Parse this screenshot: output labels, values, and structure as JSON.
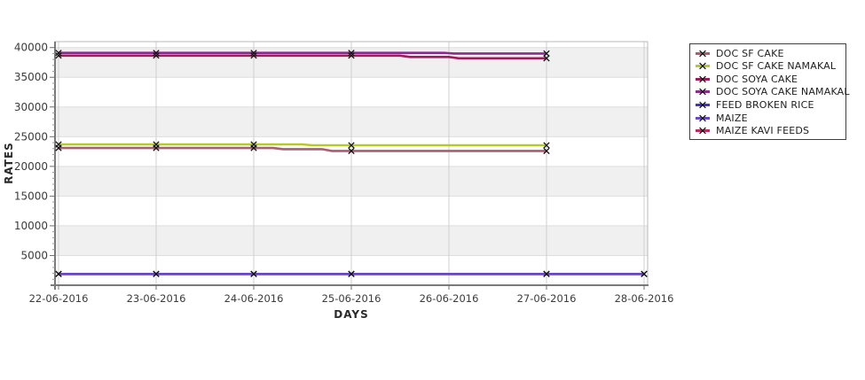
{
  "page": {
    "background": "#ffffff"
  },
  "chart_data": {
    "type": "line",
    "title": "",
    "xlabel": "DAYS",
    "ylabel": "RATES",
    "x_tick_labels": [
      "22-06-2016",
      "23-06-2016",
      "24-06-2016",
      "25-06-2016",
      "26-06-2016",
      "27-06-2016",
      "28-06-2016"
    ],
    "y_ticks": [
      5000,
      10000,
      15000,
      20000,
      25000,
      30000,
      35000,
      40000
    ],
    "y_minor_step": 1000,
    "ylim": [
      0,
      41000
    ],
    "xlim_days": [
      0,
      6
    ],
    "grid": true,
    "plot_band_colors": {
      "even": "#ffffff",
      "odd": "#f0f0f0"
    },
    "gridline_color": "#cfcfcf",
    "legend_position": "right",
    "legend_marker": "x-on-line",
    "series": [
      {
        "name": "DOC SF CAKE",
        "color": "#a85f70",
        "points": [
          [
            0,
            23100
          ],
          [
            2.2,
            23100
          ],
          [
            2.3,
            22900
          ],
          [
            2.7,
            22900
          ],
          [
            2.8,
            22600
          ],
          [
            5,
            22600
          ]
        ],
        "marker_days": [
          0,
          1,
          2,
          3,
          5
        ]
      },
      {
        "name": "DOC SF CAKE NAMAKAL",
        "color": "#b5c928",
        "points": [
          [
            0,
            23700
          ],
          [
            2.5,
            23700
          ],
          [
            2.6,
            23550
          ],
          [
            5,
            23550
          ]
        ],
        "marker_days": [
          0,
          1,
          2,
          3,
          5
        ]
      },
      {
        "name": "DOC SOYA CAKE",
        "color": "#a11a5c",
        "points": [
          [
            0,
            38650
          ],
          [
            3.5,
            38650
          ],
          [
            3.6,
            38420
          ],
          [
            4,
            38420
          ],
          [
            4.1,
            38200
          ],
          [
            5,
            38200
          ]
        ],
        "marker_days": [
          0,
          1,
          2,
          3,
          5
        ]
      },
      {
        "name": "DOC SOYA CAKE NAMAKAL",
        "color": "#8a2b8e",
        "points": [
          [
            0,
            39100
          ],
          [
            3.95,
            39100
          ],
          [
            4.05,
            39000
          ],
          [
            5,
            39000
          ]
        ],
        "marker_days": [
          0,
          1,
          2,
          3,
          5
        ]
      },
      {
        "name": "FEED BROKEN RICE",
        "color": "#4431c4",
        "points": [
          [
            0,
            1900
          ],
          [
            6,
            1900
          ]
        ],
        "marker_days": [
          0,
          1,
          2,
          3,
          5,
          6
        ]
      },
      {
        "name": "MAIZE",
        "color": "#6b45c8",
        "points": [
          [
            0,
            1900
          ],
          [
            6,
            1900
          ]
        ],
        "marker_days": [
          0,
          1,
          2,
          3,
          5,
          6
        ]
      },
      {
        "name": "MAIZE KAVI FEEDS",
        "color": "#c02a62",
        "points": [
          [
            0,
            1900
          ],
          [
            6,
            1900
          ]
        ],
        "marker_days": [
          0,
          1,
          2,
          3,
          5,
          6
        ]
      }
    ],
    "draw_order": [
      6,
      4,
      5,
      0,
      1,
      2,
      3
    ]
  }
}
